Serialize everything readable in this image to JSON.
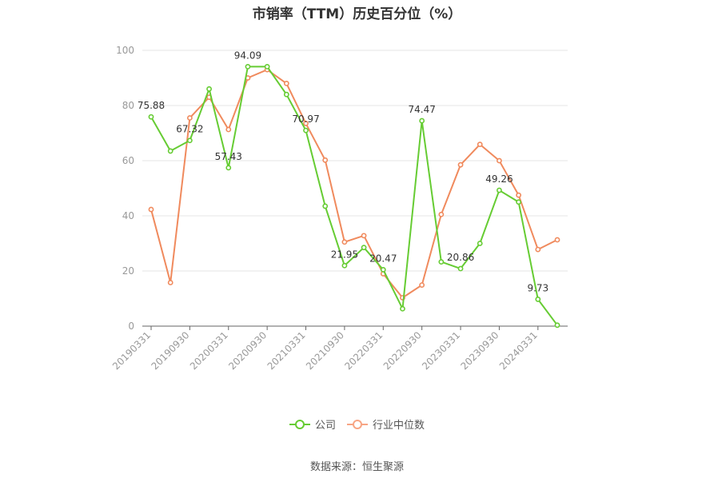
{
  "title": "市销率（TTM）历史百分位（%）",
  "source": "数据来源：恒生聚源",
  "legend": [
    {
      "label": "公司",
      "color": "#66cc33"
    },
    {
      "label": "行业中位数",
      "color": "#f7a584"
    }
  ],
  "chart_data": {
    "type": "line",
    "title": "市销率（TTM）历史百分位（%）",
    "xlabel": "",
    "ylabel": "",
    "ylim": [
      0,
      100
    ],
    "yticks": [
      0,
      20,
      40,
      60,
      80,
      100
    ],
    "grid": true,
    "legend_position": "bottom",
    "x": [
      "20190331",
      "20190630",
      "20190930",
      "20191231",
      "20200331",
      "20200630",
      "20200930",
      "20201231",
      "20210331",
      "20210630",
      "20210930",
      "20211231",
      "20220331",
      "20220630",
      "20220930",
      "20221231",
      "20230331",
      "20230630",
      "20230930",
      "20231231",
      "20240331",
      "20240630"
    ],
    "xtick_labels": [
      "20190331",
      "20190930",
      "20200331",
      "20200930",
      "20210331",
      "20210930",
      "20220331",
      "20220930",
      "20230331",
      "20230930",
      "20240331"
    ],
    "series": [
      {
        "name": "公司",
        "color": "#66cc33",
        "values": [
          75.88,
          63.5,
          67.32,
          86.0,
          57.43,
          94.09,
          94.09,
          84.0,
          70.97,
          43.5,
          21.95,
          28.5,
          20.47,
          6.3,
          74.47,
          23.3,
          20.86,
          30.0,
          49.26,
          45.0,
          9.73,
          0.35
        ],
        "labels": {
          "0": "75.88",
          "2": "67.32",
          "4": "57.43",
          "5": "94.09",
          "8": "70.97",
          "10": "21.95",
          "12": "20.47",
          "14": "74.47",
          "16": "20.86",
          "18": "49.26",
          "20": "9.73"
        }
      },
      {
        "name": "行业中位数",
        "color": "#f08a5d",
        "values": [
          42.3,
          15.8,
          75.5,
          83.0,
          71.3,
          90.0,
          93.0,
          88.0,
          73.5,
          60.2,
          30.5,
          32.8,
          19.0,
          10.3,
          14.9,
          40.5,
          58.5,
          65.9,
          60.0,
          47.5,
          27.8,
          31.3
        ]
      }
    ]
  }
}
